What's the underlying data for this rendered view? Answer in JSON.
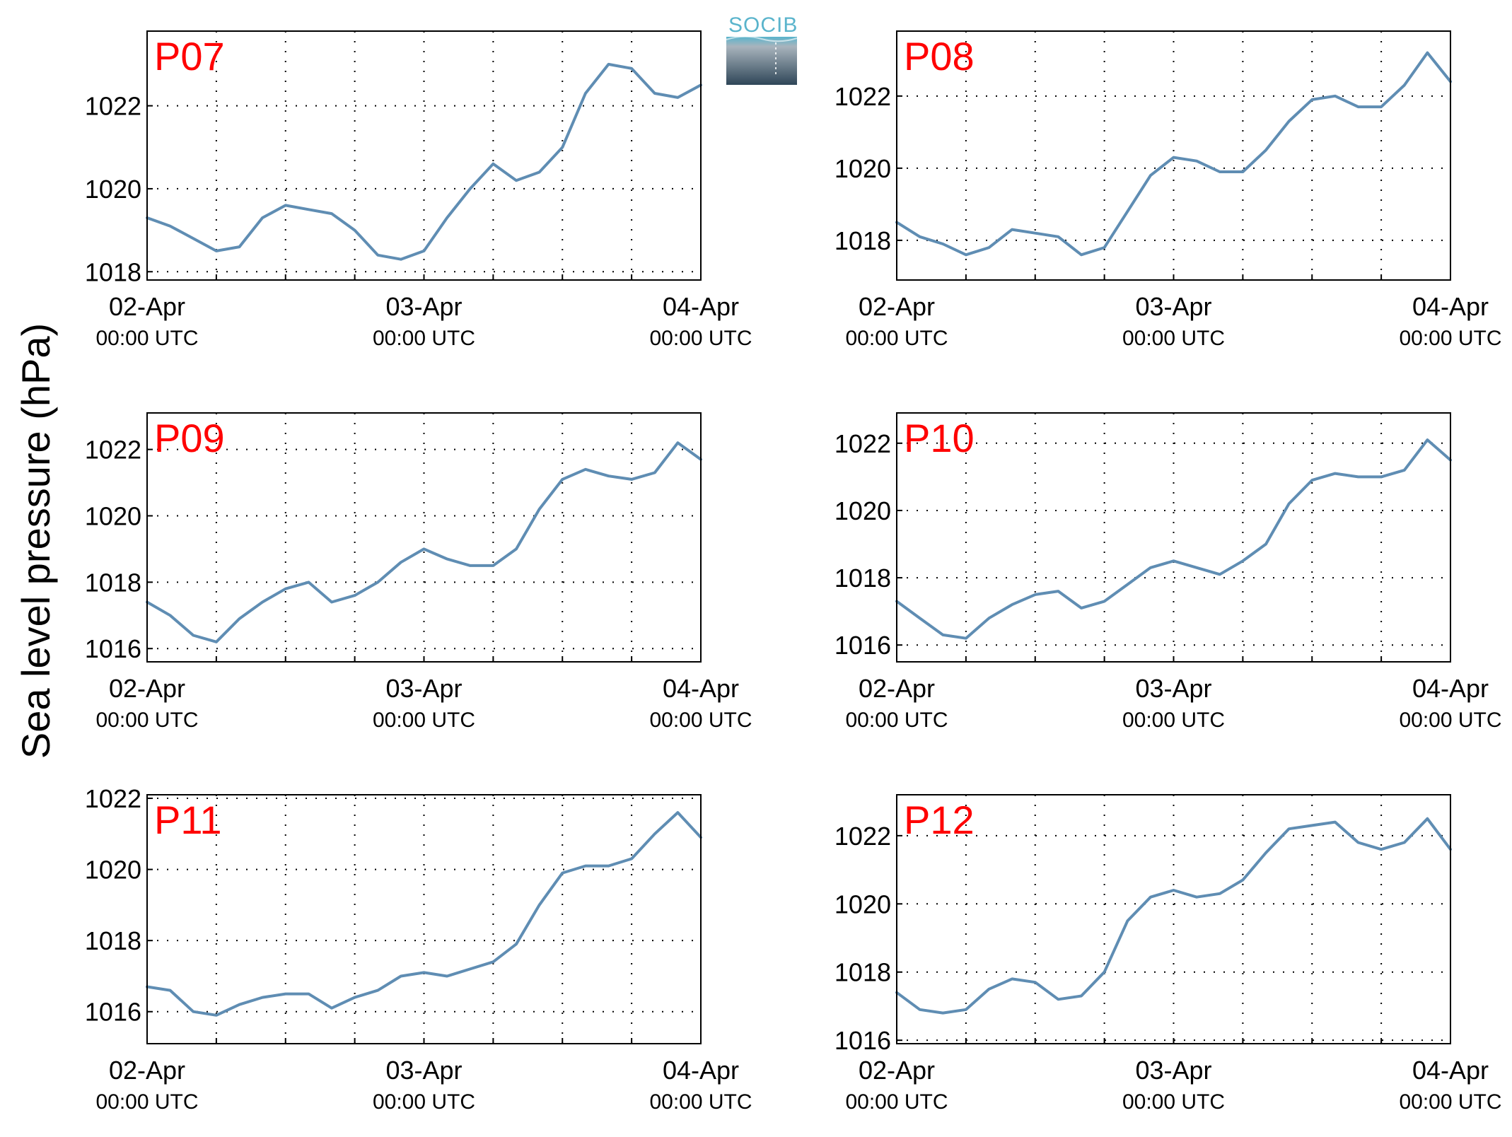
{
  "y_axis_label": "Sea level pressure (hPa)",
  "logo": {
    "text": "SOCIB",
    "color_top": "#5ab4cc",
    "color_bottom": "#2f4658"
  },
  "colors": {
    "line": "#5f8db3",
    "title": "#ff0000"
  },
  "chart_data": [
    {
      "type": "line",
      "title": "P07",
      "xlim": [
        "02-Apr 00:00 UTC",
        "04-Apr 00:00 UTC"
      ],
      "x_ticks": [
        {
          "day": "02-Apr",
          "time": "00:00 UTC"
        },
        {
          "day": "03-Apr",
          "time": "00:00 UTC"
        },
        {
          "day": "04-Apr",
          "time": "00:00 UTC"
        }
      ],
      "ylim": [
        1017.8,
        1023.8
      ],
      "y_ticks": [
        "1018",
        "1020",
        "1022"
      ],
      "grid": true,
      "series": [
        {
          "x_hours": [
            0,
            2,
            4,
            6,
            8,
            10,
            12,
            14,
            16,
            18,
            20,
            22,
            24,
            26,
            28,
            30,
            32,
            34,
            36,
            38,
            40,
            42,
            44,
            46,
            48
          ],
          "values": [
            1019.3,
            1019.1,
            1018.8,
            1018.5,
            1018.6,
            1019.3,
            1019.6,
            1019.5,
            1019.4,
            1019.0,
            1018.4,
            1018.3,
            1018.5,
            1019.3,
            1020.0,
            1020.6,
            1020.2,
            1020.4,
            1021.0,
            1022.3,
            1023.0,
            1022.9,
            1022.3,
            1022.2,
            1022.5
          ]
        }
      ]
    },
    {
      "type": "line",
      "title": "P08",
      "xlim": [
        "02-Apr 00:00 UTC",
        "04-Apr 00:00 UTC"
      ],
      "x_ticks": [
        {
          "day": "02-Apr",
          "time": "00:00 UTC"
        },
        {
          "day": "03-Apr",
          "time": "00:00 UTC"
        },
        {
          "day": "04-Apr",
          "time": "00:00 UTC"
        }
      ],
      "ylim": [
        1016.9,
        1023.8
      ],
      "y_ticks": [
        "1018",
        "1020",
        "1022"
      ],
      "grid": true,
      "series": [
        {
          "x_hours": [
            0,
            2,
            4,
            6,
            8,
            10,
            12,
            14,
            16,
            18,
            20,
            22,
            24,
            26,
            28,
            30,
            32,
            34,
            36,
            38,
            40,
            42,
            44,
            46,
            48
          ],
          "values": [
            1018.5,
            1018.1,
            1017.9,
            1017.6,
            1017.8,
            1018.3,
            1018.2,
            1018.1,
            1017.6,
            1017.8,
            1018.8,
            1019.8,
            1020.3,
            1020.2,
            1019.9,
            1019.9,
            1020.5,
            1021.3,
            1021.9,
            1022.0,
            1021.7,
            1021.7,
            1022.3,
            1023.2,
            1022.4
          ]
        }
      ]
    },
    {
      "type": "line",
      "title": "P09",
      "xlim": [
        "02-Apr 00:00 UTC",
        "04-Apr 00:00 UTC"
      ],
      "x_ticks": [
        {
          "day": "02-Apr",
          "time": "00:00 UTC"
        },
        {
          "day": "03-Apr",
          "time": "00:00 UTC"
        },
        {
          "day": "04-Apr",
          "time": "00:00 UTC"
        }
      ],
      "ylim": [
        1015.6,
        1023.1
      ],
      "y_ticks": [
        "1016",
        "1018",
        "1020",
        "1022"
      ],
      "grid": true,
      "series": [
        {
          "x_hours": [
            0,
            2,
            4,
            6,
            8,
            10,
            12,
            14,
            16,
            18,
            20,
            22,
            24,
            26,
            28,
            30,
            32,
            34,
            36,
            38,
            40,
            42,
            44,
            46,
            48
          ],
          "values": [
            1017.4,
            1017.0,
            1016.4,
            1016.2,
            1016.9,
            1017.4,
            1017.8,
            1018.0,
            1017.4,
            1017.6,
            1018.0,
            1018.6,
            1019.0,
            1018.7,
            1018.5,
            1018.5,
            1019.0,
            1020.2,
            1021.1,
            1021.4,
            1021.2,
            1021.1,
            1021.3,
            1022.2,
            1021.7
          ]
        }
      ]
    },
    {
      "type": "line",
      "title": "P10",
      "xlim": [
        "02-Apr 00:00 UTC",
        "04-Apr 00:00 UTC"
      ],
      "x_ticks": [
        {
          "day": "02-Apr",
          "time": "00:00 UTC"
        },
        {
          "day": "03-Apr",
          "time": "00:00 UTC"
        },
        {
          "day": "04-Apr",
          "time": "00:00 UTC"
        }
      ],
      "ylim": [
        1015.5,
        1022.9
      ],
      "y_ticks": [
        "1016",
        "1018",
        "1020",
        "1022"
      ],
      "grid": true,
      "series": [
        {
          "x_hours": [
            0,
            2,
            4,
            6,
            8,
            10,
            12,
            14,
            16,
            18,
            20,
            22,
            24,
            26,
            28,
            30,
            32,
            34,
            36,
            38,
            40,
            42,
            44,
            46,
            48
          ],
          "values": [
            1017.3,
            1016.8,
            1016.3,
            1016.2,
            1016.8,
            1017.2,
            1017.5,
            1017.6,
            1017.1,
            1017.3,
            1017.8,
            1018.3,
            1018.5,
            1018.3,
            1018.1,
            1018.5,
            1019.0,
            1020.2,
            1020.9,
            1021.1,
            1021.0,
            1021.0,
            1021.2,
            1022.1,
            1021.5
          ]
        }
      ]
    },
    {
      "type": "line",
      "title": "P11",
      "xlim": [
        "02-Apr 00:00 UTC",
        "04-Apr 00:00 UTC"
      ],
      "x_ticks": [
        {
          "day": "02-Apr",
          "time": "00:00 UTC"
        },
        {
          "day": "03-Apr",
          "time": "00:00 UTC"
        },
        {
          "day": "04-Apr",
          "time": "00:00 UTC"
        }
      ],
      "ylim": [
        1015.1,
        1022.1
      ],
      "y_ticks": [
        "1016",
        "1018",
        "1020",
        "1022"
      ],
      "grid": true,
      "series": [
        {
          "x_hours": [
            0,
            2,
            4,
            6,
            8,
            10,
            12,
            14,
            16,
            18,
            20,
            22,
            24,
            26,
            28,
            30,
            32,
            34,
            36,
            38,
            40,
            42,
            44,
            46,
            48
          ],
          "values": [
            1016.7,
            1016.6,
            1016.0,
            1015.9,
            1016.2,
            1016.4,
            1016.5,
            1016.5,
            1016.1,
            1016.4,
            1016.6,
            1017.0,
            1017.1,
            1017.0,
            1017.2,
            1017.4,
            1017.9,
            1019.0,
            1019.9,
            1020.1,
            1020.1,
            1020.3,
            1021.0,
            1021.6,
            1020.9
          ]
        }
      ]
    },
    {
      "type": "line",
      "title": "P12",
      "xlim": [
        "02-Apr 00:00 UTC",
        "04-Apr 00:00 UTC"
      ],
      "x_ticks": [
        {
          "day": "02-Apr",
          "time": "00:00 UTC"
        },
        {
          "day": "03-Apr",
          "time": "00:00 UTC"
        },
        {
          "day": "04-Apr",
          "time": "00:00 UTC"
        }
      ],
      "ylim": [
        1015.9,
        1023.2
      ],
      "y_ticks": [
        "1016",
        "1018",
        "1020",
        "1022"
      ],
      "grid": true,
      "series": [
        {
          "x_hours": [
            0,
            2,
            4,
            6,
            8,
            10,
            12,
            14,
            16,
            18,
            20,
            22,
            24,
            26,
            28,
            30,
            32,
            34,
            36,
            38,
            40,
            42,
            44,
            46,
            48
          ],
          "values": [
            1017.4,
            1016.9,
            1016.8,
            1016.9,
            1017.5,
            1017.8,
            1017.7,
            1017.2,
            1017.3,
            1018.0,
            1019.5,
            1020.2,
            1020.4,
            1020.2,
            1020.3,
            1020.7,
            1021.5,
            1022.2,
            1022.3,
            1022.4,
            1021.8,
            1021.6,
            1021.8,
            1022.5,
            1021.6
          ]
        }
      ]
    }
  ]
}
